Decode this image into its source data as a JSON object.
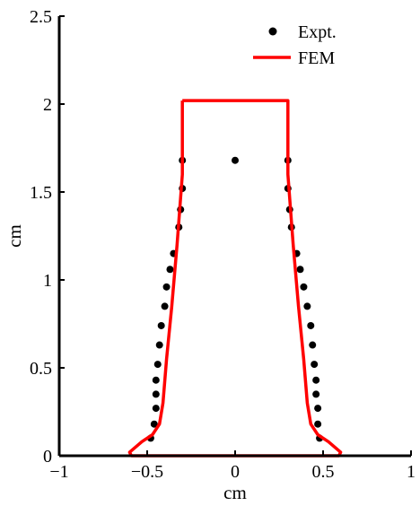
{
  "chart_data": {
    "type": "scatter",
    "title": "",
    "xlabel": "cm",
    "ylabel": "cm",
    "xlim": [
      -1,
      1
    ],
    "ylim": [
      0,
      2.5
    ],
    "x_ticks": [
      -1,
      -0.5,
      0,
      0.5,
      1
    ],
    "x_tick_labels": [
      "−1",
      "−0.5",
      "0",
      "0.5",
      "1"
    ],
    "y_ticks": [
      0,
      0.5,
      1,
      1.5,
      2,
      2.5
    ],
    "y_tick_labels": [
      "0",
      "0.5",
      "1",
      "1.5",
      "2",
      "2.5"
    ],
    "grid": false,
    "legend_position": "top-right",
    "series": [
      {
        "name": "Expt.",
        "kind": "scatter",
        "color": "#000000",
        "points": [
          [
            0,
            1.68
          ],
          [
            -0.3,
            1.68
          ],
          [
            -0.3,
            1.52
          ],
          [
            -0.31,
            1.4
          ],
          [
            -0.32,
            1.3
          ],
          [
            -0.35,
            1.15
          ],
          [
            -0.37,
            1.06
          ],
          [
            -0.39,
            0.96
          ],
          [
            -0.4,
            0.85
          ],
          [
            -0.42,
            0.74
          ],
          [
            -0.43,
            0.63
          ],
          [
            -0.44,
            0.52
          ],
          [
            -0.45,
            0.43
          ],
          [
            -0.45,
            0.35
          ],
          [
            -0.45,
            0.27
          ],
          [
            -0.46,
            0.18
          ],
          [
            -0.48,
            0.1
          ],
          [
            0.3,
            1.68
          ],
          [
            0.3,
            1.52
          ],
          [
            0.31,
            1.4
          ],
          [
            0.32,
            1.3
          ],
          [
            0.35,
            1.15
          ],
          [
            0.37,
            1.06
          ],
          [
            0.39,
            0.96
          ],
          [
            0.41,
            0.85
          ],
          [
            0.43,
            0.74
          ],
          [
            0.44,
            0.63
          ],
          [
            0.45,
            0.52
          ],
          [
            0.46,
            0.43
          ],
          [
            0.46,
            0.35
          ],
          [
            0.47,
            0.27
          ],
          [
            0.47,
            0.18
          ],
          [
            0.48,
            0.1
          ]
        ]
      },
      {
        "name": "FEM",
        "kind": "line",
        "color": "#ff0000",
        "points": [
          [
            -0.3,
            2.02
          ],
          [
            0.3,
            2.02
          ],
          [
            0.3,
            1.6
          ],
          [
            0.33,
            1.2
          ],
          [
            0.36,
            0.85
          ],
          [
            0.39,
            0.55
          ],
          [
            0.41,
            0.3
          ],
          [
            0.43,
            0.18
          ],
          [
            0.47,
            0.12
          ],
          [
            0.53,
            0.08
          ],
          [
            0.6,
            0.02
          ],
          [
            0.59,
            0.0
          ],
          [
            0.0,
            0.0
          ],
          [
            -0.59,
            0.0
          ],
          [
            -0.6,
            0.02
          ],
          [
            -0.53,
            0.08
          ],
          [
            -0.47,
            0.12
          ],
          [
            -0.43,
            0.18
          ],
          [
            -0.41,
            0.3
          ],
          [
            -0.39,
            0.55
          ],
          [
            -0.36,
            0.85
          ],
          [
            -0.33,
            1.2
          ],
          [
            -0.3,
            1.6
          ],
          [
            -0.3,
            2.02
          ]
        ]
      }
    ]
  }
}
